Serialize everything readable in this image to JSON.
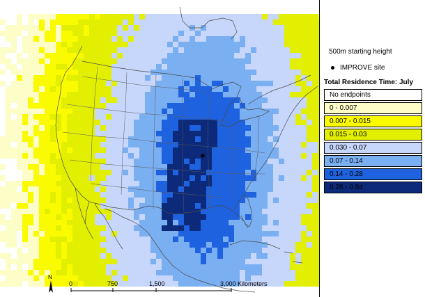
{
  "map": {
    "height_label": "500m starting height",
    "site_label": "IMPROVE site",
    "legend_title": "Total Residence Time: July",
    "legend": [
      {
        "label": "No endpoints",
        "color": "#ffffff"
      },
      {
        "label": "0 - 0.007",
        "color": "#fdfdc8"
      },
      {
        "label": "0.007 - 0.015",
        "color": "#fbfb00"
      },
      {
        "label": "0.015 - 0.03",
        "color": "#e2ef00"
      },
      {
        "label": "0.030 - 0.07",
        "color": "#c7d6fb"
      },
      {
        "label": "0.07 - 0.14",
        "color": "#7aaff1"
      },
      {
        "label": "0.14 - 0.28",
        "color": "#1f62e0"
      },
      {
        "label": "0.28 - 0.84",
        "color": "#0d2a7a"
      }
    ],
    "scale": {
      "ticks": [
        "0",
        "750",
        "1,500",
        "3,000"
      ],
      "unit": "Kilometers"
    },
    "north_label": "N"
  }
}
